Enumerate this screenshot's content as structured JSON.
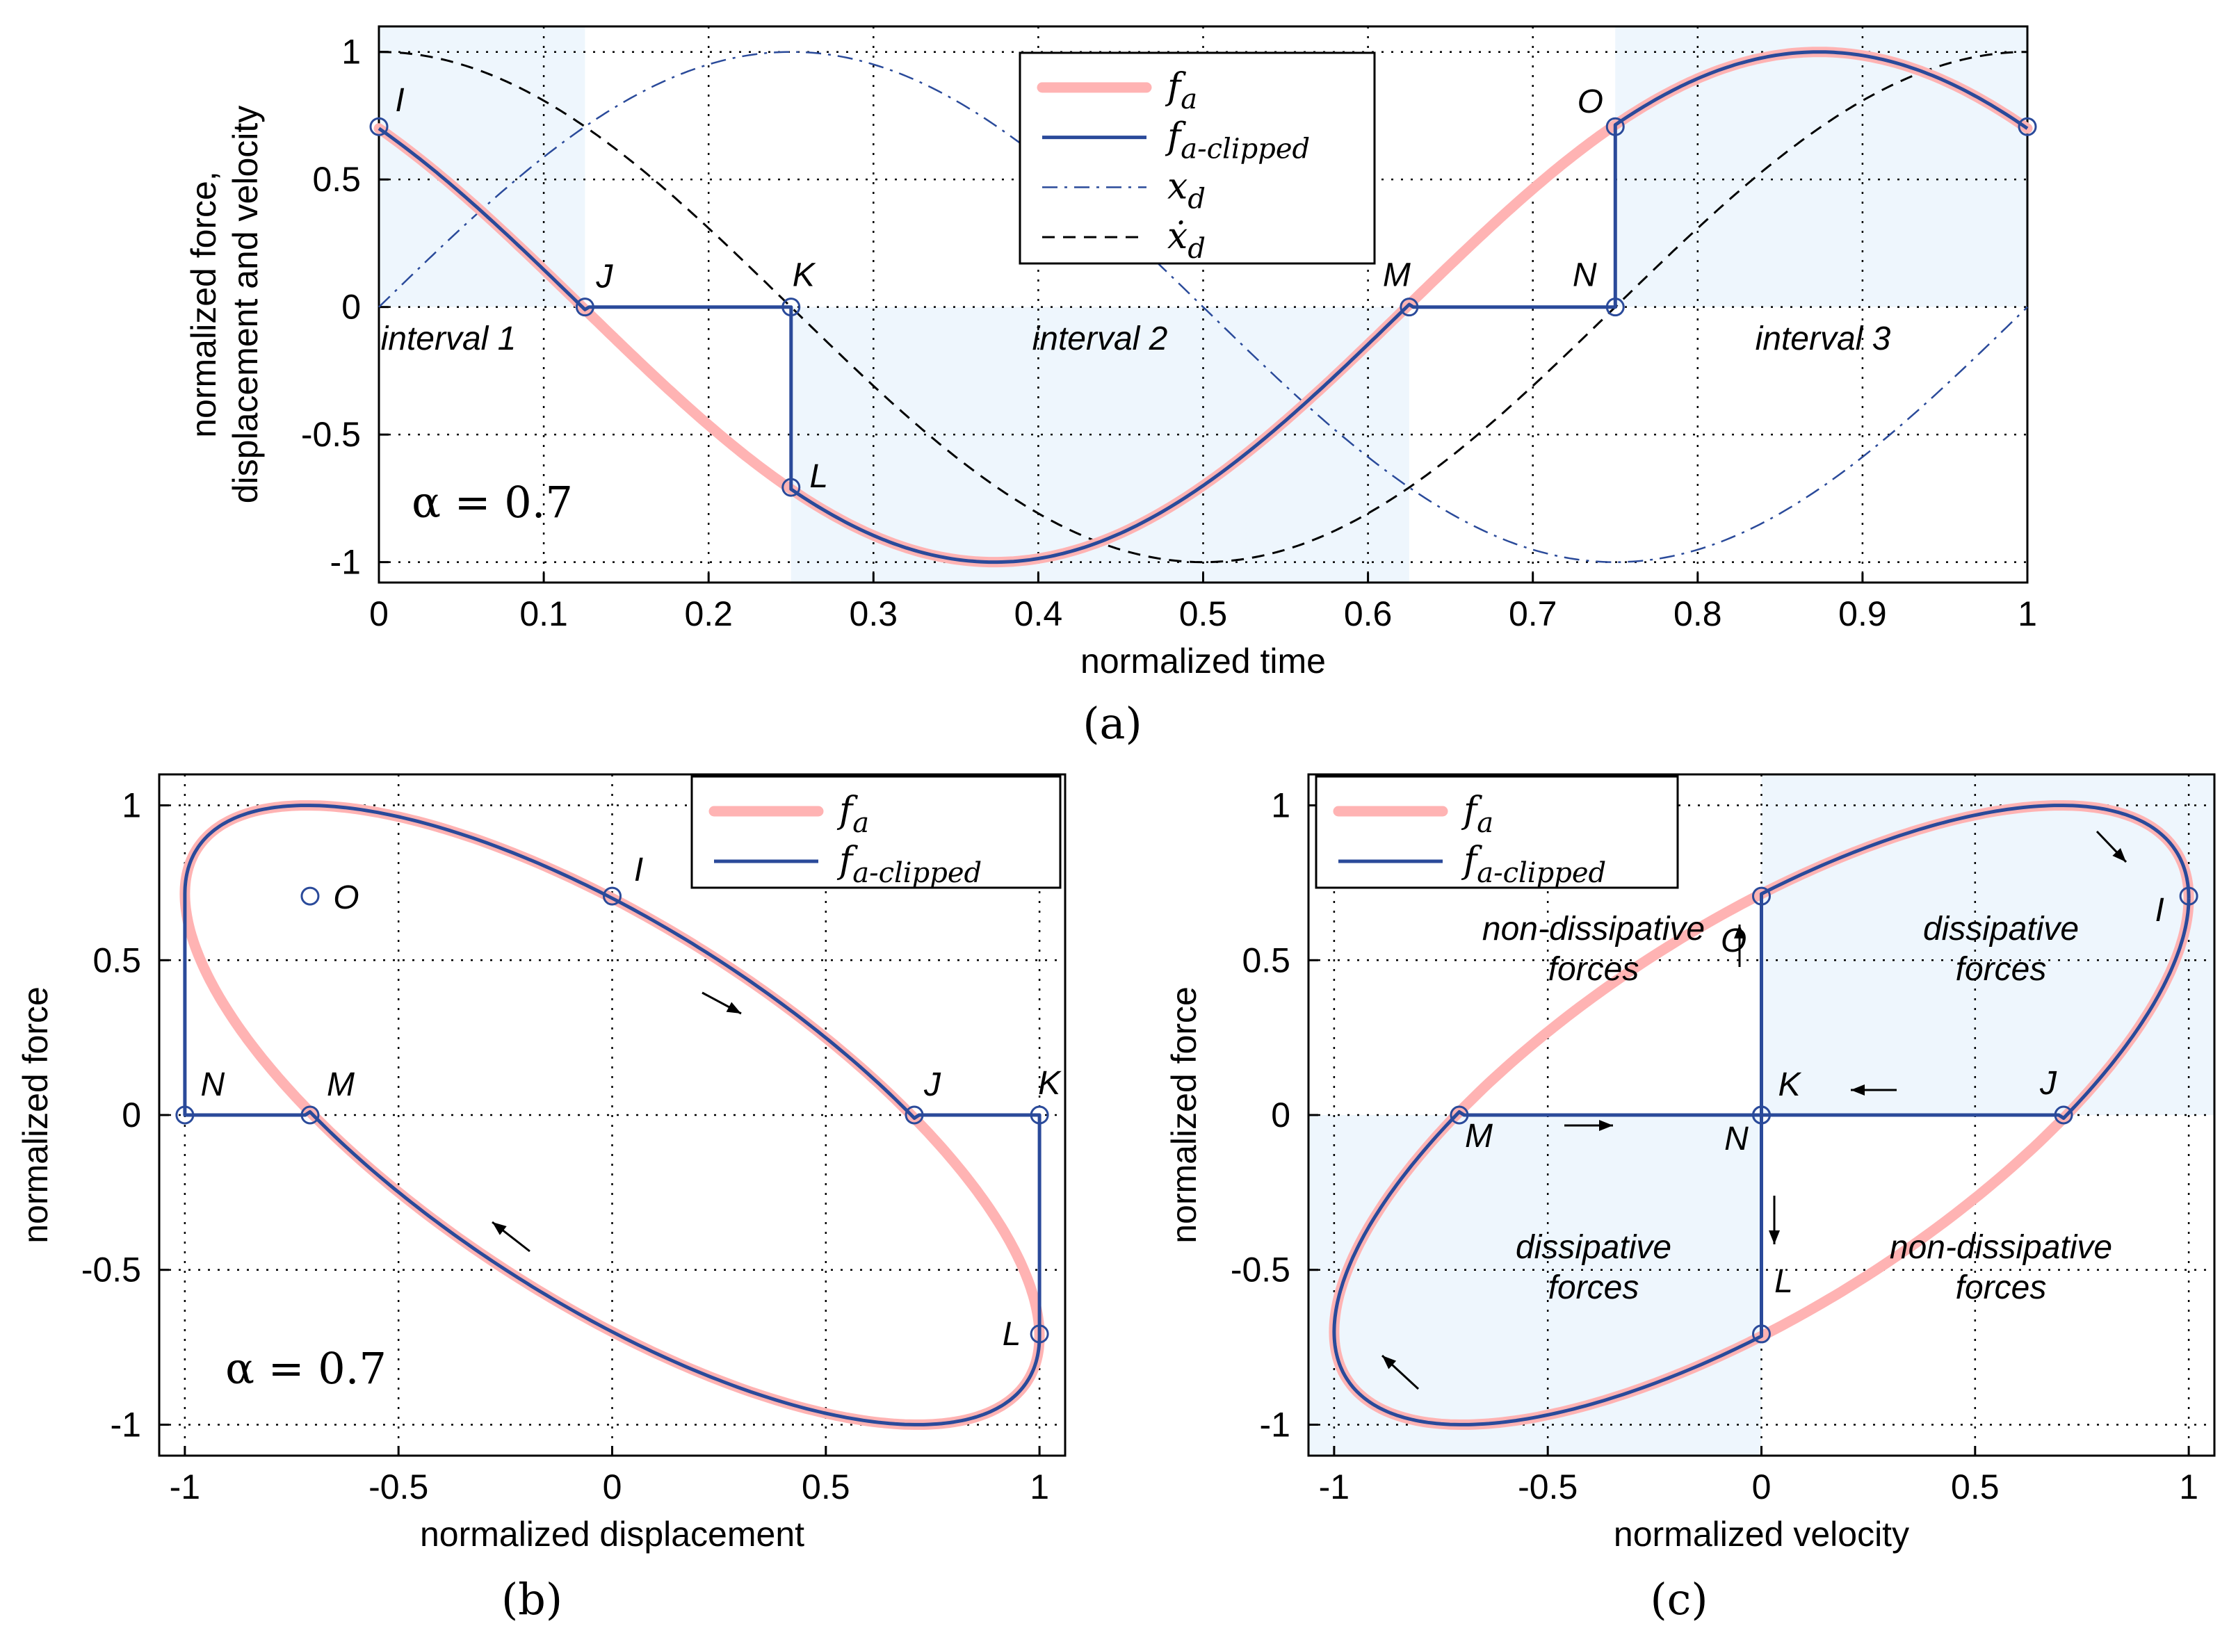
{
  "colors": {
    "fa": "#ffb3b3",
    "fa_clipped": "#2a4a9a",
    "xd": "#2a4a9a",
    "xd_dot": "#000000",
    "shade": "#eef6fd"
  },
  "chart_data": [
    {
      "id": "a",
      "type": "line",
      "caption": "(a)",
      "xlabel": "normalized time",
      "ylabel_lines": [
        "normalized force,",
        "displacement and velocity"
      ],
      "xlim": [
        0,
        1
      ],
      "ylim": [
        -1.08,
        1.1
      ],
      "xticks": [
        "0",
        "0.1",
        "0.2",
        "0.3",
        "0.4",
        "0.5",
        "0.6",
        "0.7",
        "0.8",
        "0.9",
        "1"
      ],
      "yticks": [
        "-1",
        "-0.5",
        "0",
        "0.5",
        "1"
      ],
      "grid": true,
      "alpha_label": "α = 0.7",
      "alpha": 0.7,
      "legend_position": "top-center",
      "series": [
        {
          "name": "fa",
          "sub": "a",
          "label": "f",
          "style": "thick-pink",
          "x": [
            0,
            0.0625,
            0.125,
            0.1875,
            0.25,
            0.3125,
            0.375,
            0.4375,
            0.5,
            0.5625,
            0.625,
            0.6875,
            0.75,
            0.8125,
            0.875,
            0.9375,
            1
          ],
          "y": [
            0.707,
            0.383,
            0,
            -0.383,
            -0.707,
            -0.924,
            -1,
            -0.924,
            -0.707,
            -0.383,
            0,
            0.383,
            0.707,
            0.924,
            1,
            0.924,
            0.707
          ]
        },
        {
          "name": "fa-clipped",
          "sub": "a-clipped",
          "label": "f",
          "style": "solid-blue",
          "x": [
            0,
            0.125,
            0.25,
            0.25,
            0.375,
            0.625,
            0.75,
            0.75,
            0.875,
            1
          ],
          "y": [
            0.707,
            0,
            0,
            -0.707,
            -1,
            0,
            0,
            0.707,
            1,
            0.707
          ]
        },
        {
          "name": "xd",
          "sub": "d",
          "label": "x",
          "style": "dashdot-blue",
          "x": [
            0,
            0.125,
            0.25,
            0.375,
            0.5,
            0.625,
            0.75,
            0.875,
            1
          ],
          "y": [
            0,
            0.707,
            1,
            0.707,
            0,
            -0.707,
            -1,
            -0.707,
            0
          ]
        },
        {
          "name": "xd-dot",
          "sub": "d",
          "label": "ẋ",
          "style": "dashed-black",
          "x": [
            0,
            0.125,
            0.25,
            0.375,
            0.5,
            0.625,
            0.75,
            0.875,
            1
          ],
          "y": [
            1,
            0.707,
            0,
            -0.707,
            -1,
            -0.707,
            0,
            0.707,
            1
          ]
        }
      ],
      "points": [
        {
          "label": "I",
          "x": 0,
          "y": 0.707
        },
        {
          "label": "J",
          "x": 0.125,
          "y": 0
        },
        {
          "label": "K",
          "x": 0.25,
          "y": 0
        },
        {
          "label": "L",
          "x": 0.25,
          "y": -0.707
        },
        {
          "label": "M",
          "x": 0.625,
          "y": 0
        },
        {
          "label": "N",
          "x": 0.75,
          "y": 0
        },
        {
          "label": "O",
          "x": 0.75,
          "y": 0.707
        },
        {
          "label": "",
          "x": 1,
          "y": 0.707
        }
      ],
      "intervals": [
        {
          "label": "interval 1",
          "x0": 0,
          "x1": 0.125,
          "y0": 0,
          "y1": 1.1
        },
        {
          "label": "interval 2",
          "x0": 0.25,
          "x1": 0.625,
          "y0": -1.08,
          "y1": 0
        },
        {
          "label": "interval 3",
          "x0": 0.75,
          "x1": 1,
          "y0": 0,
          "y1": 1.1
        }
      ]
    },
    {
      "id": "b",
      "type": "line",
      "caption": "(b)",
      "xlabel": "normalized displacement",
      "ylabel": "normalized force",
      "xlim": [
        -1.06,
        1.06
      ],
      "ylim": [
        -1.1,
        1.1
      ],
      "xticks": [
        "-1",
        "-0.5",
        "0",
        "0.5",
        "1"
      ],
      "yticks": [
        "-1",
        "-0.5",
        "0",
        "0.5",
        "1"
      ],
      "grid": true,
      "alpha_label": "α = 0.7",
      "legend_position": "top-right",
      "series": [
        {
          "name": "fa",
          "sub": "a",
          "label": "f",
          "style": "thick-pink"
        },
        {
          "name": "fa-clipped",
          "sub": "a-clipped",
          "label": "f",
          "style": "solid-blue"
        }
      ],
      "points": [
        {
          "label": "O",
          "x": -0.707,
          "y": 0.707
        },
        {
          "label": "I",
          "x": 0,
          "y": 0.707
        },
        {
          "label": "N",
          "x": -1,
          "y": 0
        },
        {
          "label": "M",
          "x": -0.707,
          "y": 0
        },
        {
          "label": "J",
          "x": 0.707,
          "y": 0
        },
        {
          "label": "K",
          "x": 1,
          "y": 0
        },
        {
          "label": "L",
          "x": 1,
          "y": -0.707
        }
      ]
    },
    {
      "id": "c",
      "type": "line",
      "caption": "(c)",
      "xlabel": "normalized velocity",
      "ylabel": "normalized force",
      "xlim": [
        -1.06,
        1.06
      ],
      "ylim": [
        -1.1,
        1.1
      ],
      "xticks": [
        "-1",
        "-0.5",
        "0",
        "0.5",
        "1"
      ],
      "yticks": [
        "-1",
        "-0.5",
        "0",
        "0.5",
        "1"
      ],
      "grid": true,
      "legend_position": "top-left",
      "series": [
        {
          "name": "fa",
          "sub": "a",
          "label": "f",
          "style": "thick-pink"
        },
        {
          "name": "fa-clipped",
          "sub": "a-clipped",
          "label": "f",
          "style": "solid-blue"
        }
      ],
      "points": [
        {
          "label": "O",
          "x": 0,
          "y": 0.707
        },
        {
          "label": "I",
          "x": 1,
          "y": 0.707
        },
        {
          "label": "K",
          "x": 0,
          "y": 0
        },
        {
          "label": "J",
          "x": 0.707,
          "y": 0
        },
        {
          "label": "M",
          "x": -0.707,
          "y": 0
        },
        {
          "label": "N",
          "x": 0,
          "y": 0
        },
        {
          "label": "L",
          "x": 0,
          "y": -0.707
        }
      ],
      "regions": [
        {
          "top": "non-dissipative",
          "bottom": "forces"
        },
        {
          "top": "dissipative",
          "bottom": "forces"
        },
        {
          "top": "dissipative",
          "bottom": "forces"
        },
        {
          "top": "non-dissipative",
          "bottom": "forces"
        }
      ]
    }
  ]
}
